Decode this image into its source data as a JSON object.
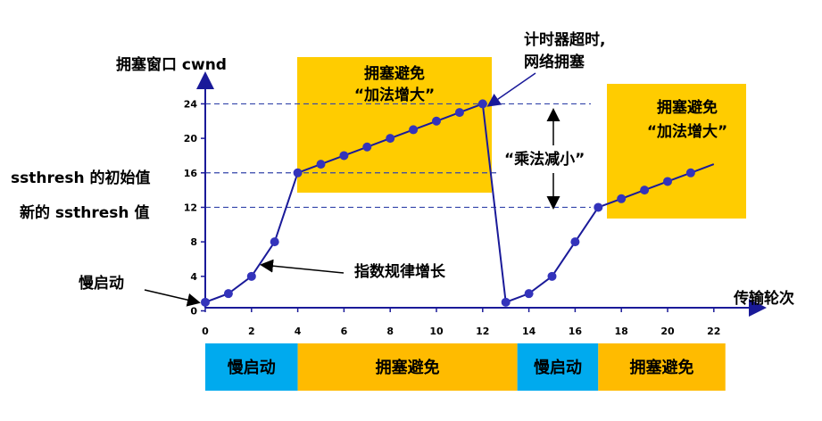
{
  "chart_data": {
    "type": "line",
    "ylabel": "拥塞窗口 cwnd",
    "xlabel": "传输轮次",
    "x_ticks": [
      0,
      2,
      4,
      6,
      8,
      10,
      12,
      14,
      16,
      18,
      20,
      22
    ],
    "y_ticks": [
      0,
      4,
      8,
      12,
      16,
      20,
      24
    ],
    "xlim": [
      0,
      23.5
    ],
    "ylim": [
      0,
      28
    ],
    "dashed_levels": [
      24,
      16,
      12
    ],
    "series": [
      {
        "x": [
          0,
          1,
          2,
          3,
          4,
          5,
          6,
          7,
          8,
          9,
          10,
          11,
          12,
          13,
          14,
          15,
          16,
          17,
          18,
          19,
          20,
          21,
          22
        ],
        "y": [
          1,
          2,
          4,
          8,
          16,
          17,
          18,
          19,
          20,
          21,
          22,
          23,
          24,
          1,
          2,
          4,
          8,
          12,
          13,
          14,
          15,
          16,
          17
        ]
      }
    ],
    "colors": {
      "line": "#1a1a99",
      "dot": "#3333bb",
      "axis": "#1a1a99",
      "box": "#ffcc00",
      "slow_start": "#00aaee",
      "avoidance": "#ffbb00"
    }
  },
  "labels": {
    "ssthresh_initial": "ssthresh 的初始值",
    "ssthresh_new": "新的 ssthresh 值",
    "slow_start": "慢启动",
    "exponential": "指数规律增长",
    "timeout_line1": "计时器超时,",
    "timeout_line2": "网络拥塞",
    "multiplicative": "“乘法减小”",
    "box1_line1": "拥塞避免",
    "box1_line2": "“加法增大”",
    "box2_line1": "拥塞避免",
    "box2_line2": "“加法增大”"
  },
  "phases": [
    {
      "label": "慢启动",
      "from": 0,
      "to": 4,
      "kind": "slow_start"
    },
    {
      "label": "拥塞避免",
      "from": 4,
      "to": 13.5,
      "kind": "avoidance"
    },
    {
      "label": "慢启动",
      "from": 13.5,
      "to": 17,
      "kind": "slow_start"
    },
    {
      "label": "拥塞避免",
      "from": 17,
      "to": 22.5,
      "kind": "avoidance"
    }
  ]
}
